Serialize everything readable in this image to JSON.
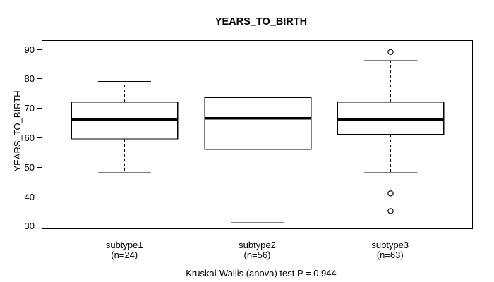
{
  "figure": {
    "title": "YEARS_TO_BIRTH",
    "y_axis_label": "YEARS_TO_BIRTH",
    "caption": "Kruskal-Wallis (anova) test P = 0.944"
  },
  "chart_data": {
    "type": "boxplot",
    "title": "YEARS_TO_BIRTH",
    "xlabel": "",
    "ylabel": "YEARS_TO_BIRTH",
    "caption": "Kruskal-Wallis (anova) test P = 0.944",
    "grid": false,
    "legend_position": "none",
    "ylim": [
      29.0,
      92.9
    ],
    "yticks": [
      30,
      40,
      50,
      60,
      70,
      80,
      90
    ],
    "xlim": [
      0.38,
      3.62
    ],
    "positions": [
      1,
      2,
      3
    ],
    "box_width": 0.8,
    "cap_width": 0.4,
    "categories": [
      "subtype1",
      "subtype2",
      "subtype3"
    ],
    "category_sublabels": [
      "(n=24)",
      "(n=56)",
      "(n=63)"
    ],
    "counts": [
      24,
      56,
      63
    ],
    "series": [
      {
        "name": "subtype1",
        "n": 24,
        "whisker_low": 48,
        "q1": 59.5,
        "median": 66,
        "q3": 72,
        "whisker_high": 79,
        "outliers": []
      },
      {
        "name": "subtype2",
        "n": 56,
        "whisker_low": 31,
        "q1": 56,
        "median": 66.5,
        "q3": 73.5,
        "whisker_high": 90,
        "outliers": []
      },
      {
        "name": "subtype3",
        "n": 63,
        "whisker_low": 48,
        "q1": 61,
        "median": 66,
        "q3": 72,
        "whisker_high": 86,
        "outliers": [
          89,
          41,
          35
        ]
      }
    ],
    "colors": {
      "line": "#000000",
      "median": "#000000",
      "box_fill": "#ffffff",
      "background": "#ffffff"
    }
  }
}
